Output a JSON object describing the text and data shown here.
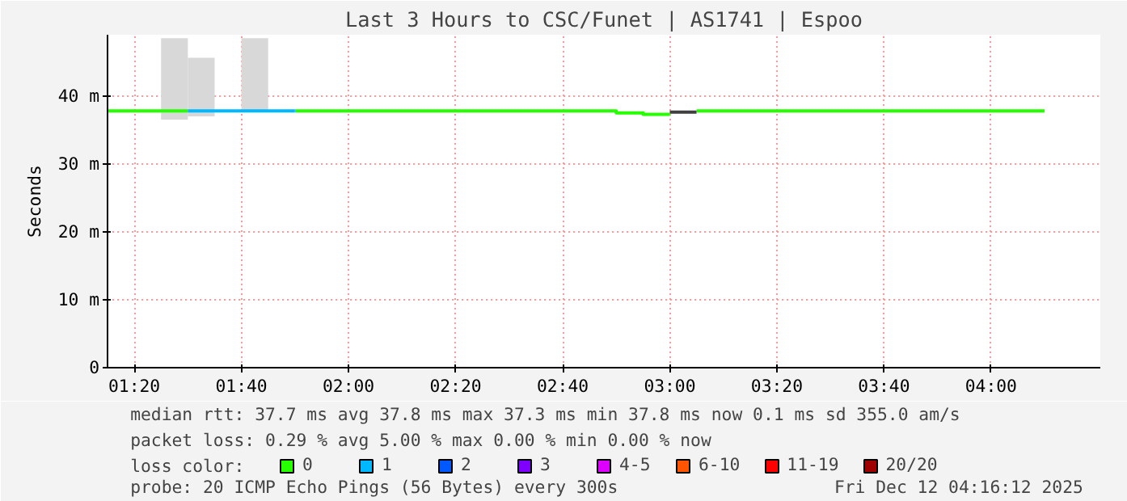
{
  "chart_data": {
    "type": "line",
    "title": "Last 3 Hours to CSC/Funet | AS1741 | Espoo",
    "ylabel": "Seconds",
    "legend_title": "loss color:",
    "legend": "bottom",
    "grid": true,
    "xlim": [
      1.25,
      4.34
    ],
    "xticks": [
      {
        "value": 1.3333,
        "label": "01:20"
      },
      {
        "value": 1.6667,
        "label": "01:40"
      },
      {
        "value": 2.0,
        "label": "02:00"
      },
      {
        "value": 2.3333,
        "label": "02:20"
      },
      {
        "value": 2.6667,
        "label": "02:40"
      },
      {
        "value": 3.0,
        "label": "03:00"
      },
      {
        "value": 3.3333,
        "label": "03:20"
      },
      {
        "value": 3.6667,
        "label": "03:40"
      },
      {
        "value": 4.0,
        "label": "04:00"
      }
    ],
    "ylim": [
      0,
      49
    ],
    "yticks": [
      0,
      {
        "value": 10,
        "label": "10 m"
      },
      {
        "value": 20,
        "label": "20 m"
      },
      {
        "value": 30,
        "label": "30 m"
      },
      {
        "value": 40,
        "label": "40 m"
      }
    ],
    "series": [
      {
        "type": "bar",
        "color": "#d8d8d8",
        "x": [
          1.4583,
          1.5417,
          1.7083
        ],
        "base": [
          36.5,
          37.0,
          37.8
        ],
        "values": [
          12.0,
          8.6,
          10.7
        ]
      },
      {
        "name": "0",
        "color": "#26ff00",
        "x": [
          1.25,
          1.5,
          1.6667,
          1.8333,
          2.8333,
          2.8333,
          2.9167,
          2.9167,
          3.0,
          3.0417,
          3.0833,
          4.1667
        ],
        "values": [
          37.8,
          37.8,
          null,
          37.8,
          37.8,
          37.5,
          37.5,
          37.3,
          37.3,
          null,
          37.8,
          37.8
        ]
      },
      {
        "name": "1",
        "color": "#00b8ff",
        "x": [
          1.5,
          1.8333
        ],
        "values": [
          37.8,
          37.8
        ]
      },
      {
        "name": "2",
        "color": "#0059ff"
      },
      {
        "name": "3",
        "color": "#7e00ff"
      },
      {
        "name": "4-5",
        "color": "#dd00ff"
      },
      {
        "name": "6-10",
        "color": "#ff5500"
      },
      {
        "name": "11-19",
        "color": "#ff0000"
      },
      {
        "name": "20/20",
        "color": "#a10000"
      },
      {
        "color": "#404040",
        "x": [
          3.0,
          3.0833
        ],
        "values": [
          37.6,
          37.6
        ]
      }
    ],
    "annotations": [
      "median rtt:  37.7 ms avg  37.8 ms max  37.3 ms min  37.8 ms now  0.1 ms sd  355.0   am/s",
      "packet loss: 0.29 % avg  5.00 % max  0.00 % min  0.00 % now",
      "probe:       20 ICMP Echo Pings (56 Bytes) every 300s",
      "Fri Dec 12 04:16:12 2025"
    ]
  }
}
